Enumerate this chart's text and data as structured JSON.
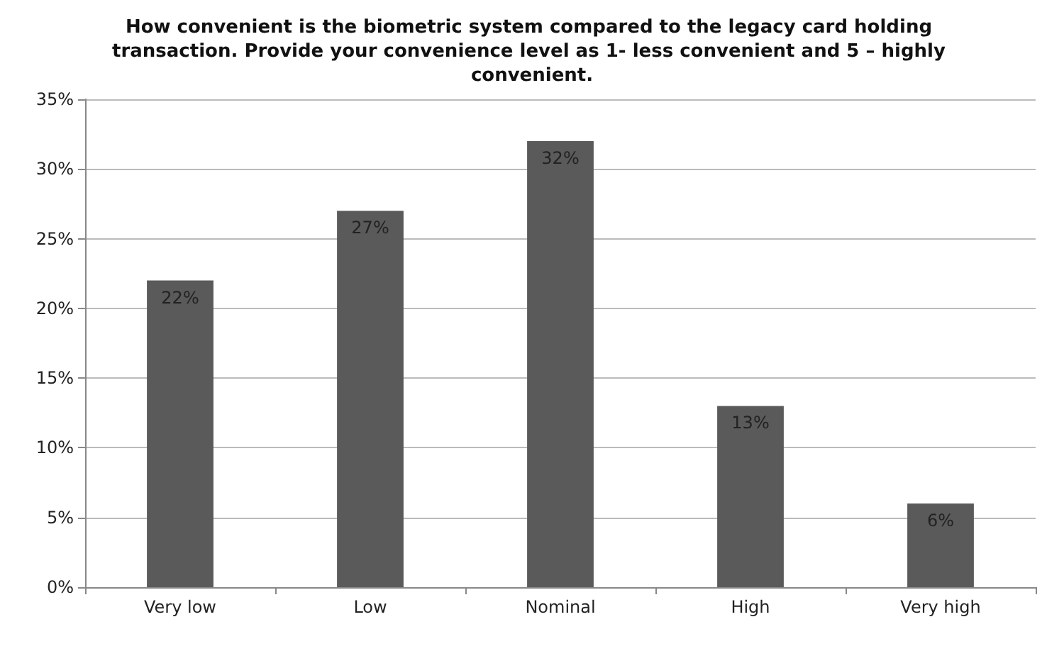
{
  "chart_data": {
    "type": "bar",
    "title": "How convenient is the biometric system compared to the legacy card holding transaction. Provide your convenience level as 1- less convenient and 5 – highly convenient.",
    "categories": [
      "Very low",
      "Low",
      "Nominal",
      "High",
      "Very high"
    ],
    "values": [
      22,
      27,
      32,
      13,
      6
    ],
    "value_labels": [
      "22%",
      "27%",
      "32%",
      "13%",
      "6%"
    ],
    "color": "#5a5a5a",
    "ylim": [
      0,
      35
    ],
    "yticks": [
      {
        "value": 0,
        "label": "0%"
      },
      {
        "value": 5,
        "label": "5%"
      },
      {
        "value": 10,
        "label": "10%"
      },
      {
        "value": 15,
        "label": "15%"
      },
      {
        "value": 20,
        "label": "20%"
      },
      {
        "value": 25,
        "label": "25%"
      },
      {
        "value": 30,
        "label": "30%"
      },
      {
        "value": 35,
        "label": "35%"
      }
    ],
    "grid": "y"
  }
}
